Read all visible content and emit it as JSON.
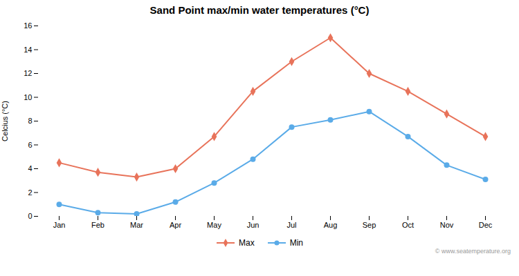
{
  "chart_data": {
    "type": "line",
    "title": "Sand Point max/min water temperatures (°C)",
    "ylabel": "Celcius (°C)",
    "categories": [
      "Jan",
      "Feb",
      "Mar",
      "Apr",
      "May",
      "Jun",
      "Jul",
      "Aug",
      "Sep",
      "Oct",
      "Nov",
      "Dec"
    ],
    "series": [
      {
        "name": "Max",
        "color": "#e8735a",
        "marker": "diamond",
        "values": [
          4.5,
          3.7,
          3.3,
          4.0,
          6.7,
          10.5,
          13.0,
          15.0,
          12.0,
          10.5,
          8.6,
          6.7
        ]
      },
      {
        "name": "Min",
        "color": "#5aabe8",
        "marker": "circle",
        "values": [
          1.0,
          0.3,
          0.2,
          1.2,
          2.8,
          4.8,
          7.5,
          8.1,
          8.8,
          6.7,
          4.3,
          3.1
        ]
      }
    ],
    "ylim": [
      0,
      16
    ],
    "yticks": [
      0,
      2,
      4,
      6,
      8,
      10,
      12,
      14,
      16
    ],
    "grid": false,
    "legend": "bottom",
    "annotations": [
      "© www.seatemperature.org"
    ]
  }
}
